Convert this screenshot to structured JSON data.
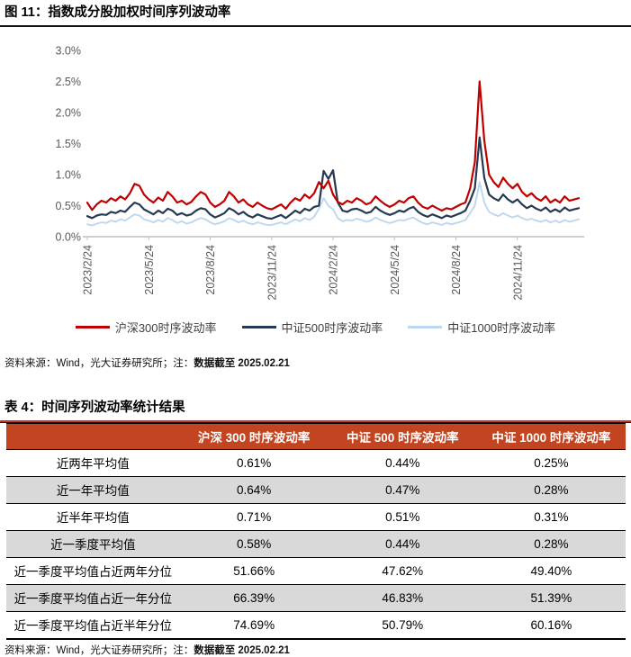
{
  "page": {
    "figure_caption": "图 11：指数成分股加权时间序列波动率",
    "figure_source_prefix": "资料来源：Wind，光大证券研究所；注：",
    "figure_source_bold": "数据截至 2025.02.21",
    "table_caption": "表 4：时间序列波动率统计结果",
    "table_source_prefix": "资料来源：Wind，光大证券研究所；注：",
    "table_source_bold": "数据截至 2025.02.21"
  },
  "colors": {
    "hs300_red": "#C00000",
    "zz500_navy": "#253A52",
    "zz1000_lightblue": "#BDD7EE",
    "table_header_bg": "#C24420",
    "row_stripe": "#D9D9D9",
    "axis_gray": "#BFBFBF",
    "caption_rule_red": "#C0392B",
    "caption_rule_black": "#141414"
  },
  "chart_data": {
    "type": "line",
    "title": "指数成分股加权时间序列波动率",
    "xlabel": "",
    "ylabel": "",
    "unit": "percent",
    "ylim": [
      0,
      3.0
    ],
    "grid": false,
    "legend_position": "bottom",
    "y_ticks": [
      "0.0%",
      "0.5%",
      "1.0%",
      "1.5%",
      "2.0%",
      "2.5%",
      "3.0%"
    ],
    "x_ticks": [
      "2023/2/24",
      "2023/5/24",
      "2023/8/24",
      "2023/11/24",
      "2024/2/24",
      "2024/5/24",
      "2024/8/24",
      "2024/11/24"
    ],
    "x_start": "2023/2/24",
    "x_end": "2025/2/21",
    "x_tick_every_n_points": 13,
    "series": [
      {
        "name": "沪深300时序波动率",
        "color": "#C00000",
        "values": [
          0.55,
          0.43,
          0.52,
          0.58,
          0.55,
          0.62,
          0.58,
          0.65,
          0.6,
          0.7,
          0.85,
          0.82,
          0.68,
          0.6,
          0.55,
          0.63,
          0.58,
          0.72,
          0.65,
          0.55,
          0.58,
          0.52,
          0.56,
          0.65,
          0.72,
          0.68,
          0.55,
          0.48,
          0.52,
          0.58,
          0.72,
          0.65,
          0.55,
          0.6,
          0.52,
          0.48,
          0.55,
          0.5,
          0.46,
          0.44,
          0.48,
          0.52,
          0.45,
          0.55,
          0.62,
          0.58,
          0.68,
          0.62,
          0.7,
          0.88,
          0.78,
          0.9,
          0.68,
          0.56,
          0.52,
          0.58,
          0.55,
          0.62,
          0.58,
          0.52,
          0.55,
          0.65,
          0.58,
          0.52,
          0.48,
          0.52,
          0.58,
          0.55,
          0.62,
          0.65,
          0.55,
          0.48,
          0.45,
          0.5,
          0.46,
          0.42,
          0.46,
          0.44,
          0.48,
          0.52,
          0.55,
          0.78,
          1.2,
          2.5,
          1.55,
          1.0,
          0.88,
          0.8,
          0.95,
          0.85,
          0.78,
          0.85,
          0.72,
          0.65,
          0.7,
          0.62,
          0.58,
          0.65,
          0.55,
          0.6,
          0.55,
          0.65,
          0.58,
          0.6,
          0.62
        ]
      },
      {
        "name": "中证500时序波动率",
        "color": "#253A52",
        "values": [
          0.33,
          0.3,
          0.34,
          0.36,
          0.35,
          0.4,
          0.38,
          0.42,
          0.4,
          0.48,
          0.55,
          0.52,
          0.44,
          0.4,
          0.36,
          0.42,
          0.38,
          0.45,
          0.42,
          0.35,
          0.38,
          0.34,
          0.36,
          0.42,
          0.46,
          0.44,
          0.36,
          0.31,
          0.34,
          0.38,
          0.46,
          0.42,
          0.36,
          0.4,
          0.34,
          0.31,
          0.36,
          0.33,
          0.3,
          0.29,
          0.32,
          0.35,
          0.3,
          0.36,
          0.42,
          0.38,
          0.45,
          0.42,
          0.48,
          0.5,
          1.06,
          0.93,
          1.07,
          0.55,
          0.42,
          0.4,
          0.44,
          0.45,
          0.42,
          0.38,
          0.4,
          0.48,
          0.42,
          0.38,
          0.35,
          0.38,
          0.42,
          0.4,
          0.45,
          0.48,
          0.4,
          0.35,
          0.32,
          0.36,
          0.33,
          0.3,
          0.34,
          0.32,
          0.35,
          0.38,
          0.42,
          0.58,
          0.78,
          1.6,
          0.95,
          0.68,
          0.62,
          0.58,
          0.68,
          0.6,
          0.55,
          0.6,
          0.52,
          0.46,
          0.5,
          0.45,
          0.42,
          0.47,
          0.4,
          0.44,
          0.4,
          0.47,
          0.42,
          0.44,
          0.46
        ]
      },
      {
        "name": "中证1000时序波动率",
        "color": "#BDD7EE",
        "values": [
          0.2,
          0.18,
          0.21,
          0.23,
          0.22,
          0.26,
          0.24,
          0.28,
          0.26,
          0.31,
          0.36,
          0.34,
          0.28,
          0.26,
          0.23,
          0.27,
          0.24,
          0.3,
          0.27,
          0.22,
          0.25,
          0.21,
          0.23,
          0.27,
          0.3,
          0.28,
          0.23,
          0.2,
          0.22,
          0.25,
          0.3,
          0.27,
          0.23,
          0.26,
          0.22,
          0.2,
          0.23,
          0.21,
          0.19,
          0.19,
          0.21,
          0.23,
          0.2,
          0.24,
          0.28,
          0.25,
          0.3,
          0.27,
          0.32,
          0.45,
          0.62,
          0.5,
          0.44,
          0.3,
          0.25,
          0.27,
          0.26,
          0.29,
          0.27,
          0.24,
          0.26,
          0.31,
          0.27,
          0.24,
          0.22,
          0.24,
          0.27,
          0.26,
          0.29,
          0.31,
          0.26,
          0.22,
          0.2,
          0.23,
          0.21,
          0.19,
          0.22,
          0.2,
          0.22,
          0.24,
          0.27,
          0.38,
          0.5,
          0.88,
          0.55,
          0.4,
          0.36,
          0.33,
          0.38,
          0.34,
          0.31,
          0.34,
          0.3,
          0.27,
          0.29,
          0.26,
          0.24,
          0.27,
          0.23,
          0.26,
          0.23,
          0.27,
          0.24,
          0.26,
          0.28
        ]
      }
    ]
  },
  "table": {
    "columns": [
      "",
      "沪深 300 时序波动率",
      "中证 500 时序波动率",
      "中证 1000 时序波动率"
    ],
    "rows": [
      {
        "label": "近两年平均值",
        "values": [
          "0.61%",
          "0.44%",
          "0.25%"
        ]
      },
      {
        "label": "近一年平均值",
        "values": [
          "0.64%",
          "0.47%",
          "0.28%"
        ]
      },
      {
        "label": "近半年平均值",
        "values": [
          "0.71%",
          "0.51%",
          "0.31%"
        ]
      },
      {
        "label": "近一季度平均值",
        "values": [
          "0.58%",
          "0.44%",
          "0.28%"
        ]
      },
      {
        "label": "近一季度平均值占近两年分位",
        "values": [
          "51.66%",
          "47.62%",
          "49.40%"
        ]
      },
      {
        "label": "近一季度平均值占近一年分位",
        "values": [
          "66.39%",
          "46.83%",
          "51.39%"
        ]
      },
      {
        "label": "近一季度平均值占近半年分位",
        "values": [
          "74.69%",
          "50.79%",
          "60.16%"
        ]
      }
    ]
  }
}
